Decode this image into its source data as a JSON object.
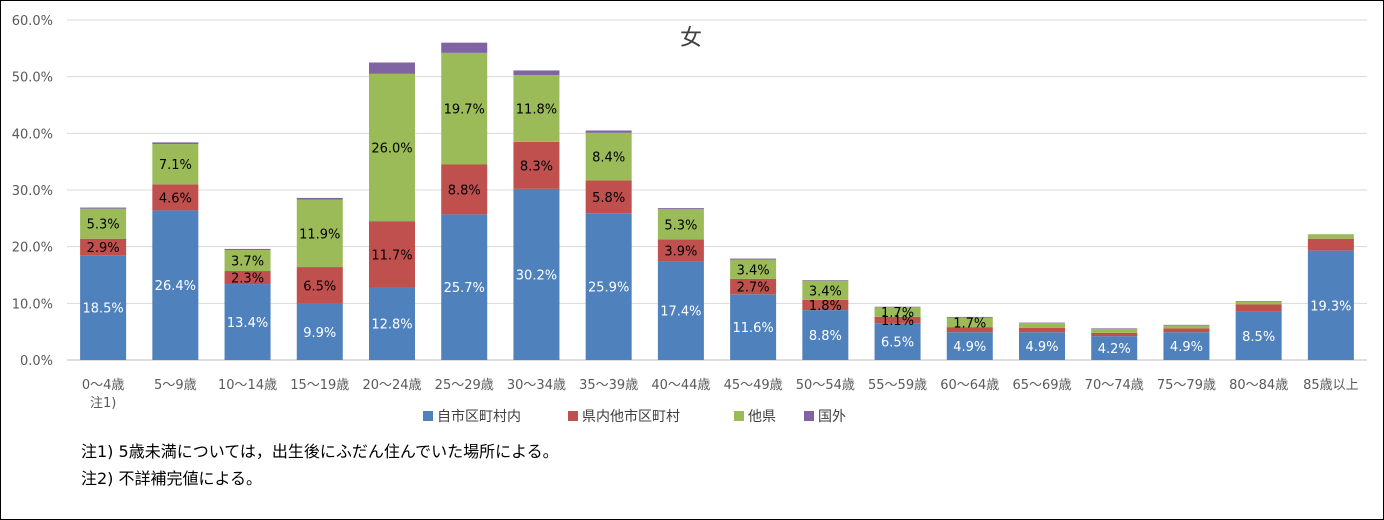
{
  "chart_data": {
    "type": "bar",
    "stacked": true,
    "title": "女",
    "categories": [
      "0～4歳",
      "5～9歳",
      "10～14歳",
      "15～19歳",
      "20～24歳",
      "25～29歳",
      "30～34歳",
      "35～39歳",
      "40～44歳",
      "45～49歳",
      "50～54歳",
      "55～59歳",
      "60～64歳",
      "65～69歳",
      "70～74歳",
      "75～79歳",
      "80～84歳",
      "85歳以上"
    ],
    "category_notes": [
      "注1)",
      "",
      "",
      "",
      "",
      "",
      "",
      "",
      "",
      "",
      "",
      "",
      "",
      "",
      "",
      "",
      "",
      ""
    ],
    "series": [
      {
        "name": "自市区町村内",
        "color": "#4F81BD",
        "values": [
          18.5,
          26.4,
          13.4,
          9.9,
          12.8,
          25.7,
          30.2,
          25.9,
          17.4,
          11.6,
          8.8,
          6.5,
          4.9,
          4.9,
          4.2,
          4.9,
          8.5,
          19.3
        ],
        "labels": [
          "18.5%",
          "26.4%",
          "13.4%",
          "9.9%",
          "12.8%",
          "25.7%",
          "30.2%",
          "25.9%",
          "17.4%",
          "11.6%",
          "8.8%",
          "6.5%",
          "4.9%",
          "4.9%",
          "4.2%",
          "4.9%",
          "8.5%",
          "19.3%"
        ]
      },
      {
        "name": "県内他市区町村",
        "color": "#C0504D",
        "values": [
          2.9,
          4.6,
          2.3,
          6.5,
          11.7,
          8.8,
          8.3,
          5.8,
          3.9,
          2.7,
          1.8,
          1.1,
          0.9,
          0.8,
          0.6,
          0.7,
          1.3,
          2.1
        ],
        "labels": [
          "2.9%",
          "4.6%",
          "2.3%",
          "6.5%",
          "11.7%",
          "8.8%",
          "8.3%",
          "5.8%",
          "3.9%",
          "2.7%",
          "1.8%",
          "1.1%",
          "",
          "",
          "",
          "",
          "",
          ""
        ]
      },
      {
        "name": "他県",
        "color": "#9BBB59",
        "values": [
          5.3,
          7.1,
          3.7,
          11.9,
          26.0,
          19.7,
          11.8,
          8.4,
          5.3,
          3.4,
          3.4,
          1.7,
          1.7,
          0.8,
          0.7,
          0.5,
          0.5,
          0.8
        ],
        "labels": [
          "5.3%",
          "7.1%",
          "3.7%",
          "11.9%",
          "26.0%",
          "19.7%",
          "11.8%",
          "8.4%",
          "5.3%",
          "3.4%",
          "3.4%",
          "1.7%",
          "1.7%",
          "",
          "",
          "",
          "",
          ""
        ]
      },
      {
        "name": "国外",
        "color": "#8064A2",
        "values": [
          0.2,
          0.3,
          0.2,
          0.3,
          2.0,
          1.8,
          0.8,
          0.4,
          0.2,
          0.2,
          0.1,
          0.1,
          0.1,
          0.1,
          0.1,
          0.1,
          0.1,
          0.0
        ],
        "labels": [
          "",
          "",
          "",
          "",
          "",
          "",
          "",
          "",
          "",
          "",
          "",
          "",
          "",
          "",
          "",
          "",
          "",
          ""
        ]
      }
    ],
    "y_ticks": [
      "0.0%",
      "10.0%",
      "20.0%",
      "30.0%",
      "40.0%",
      "50.0%",
      "60.0%"
    ],
    "ylim": [
      0,
      60
    ],
    "grid": true,
    "legend_position": "bottom"
  },
  "notes": [
    "注1) 5歳未満については，出生後にふだん住んでいた場所による。",
    "注2) 不詳補完値による。"
  ]
}
